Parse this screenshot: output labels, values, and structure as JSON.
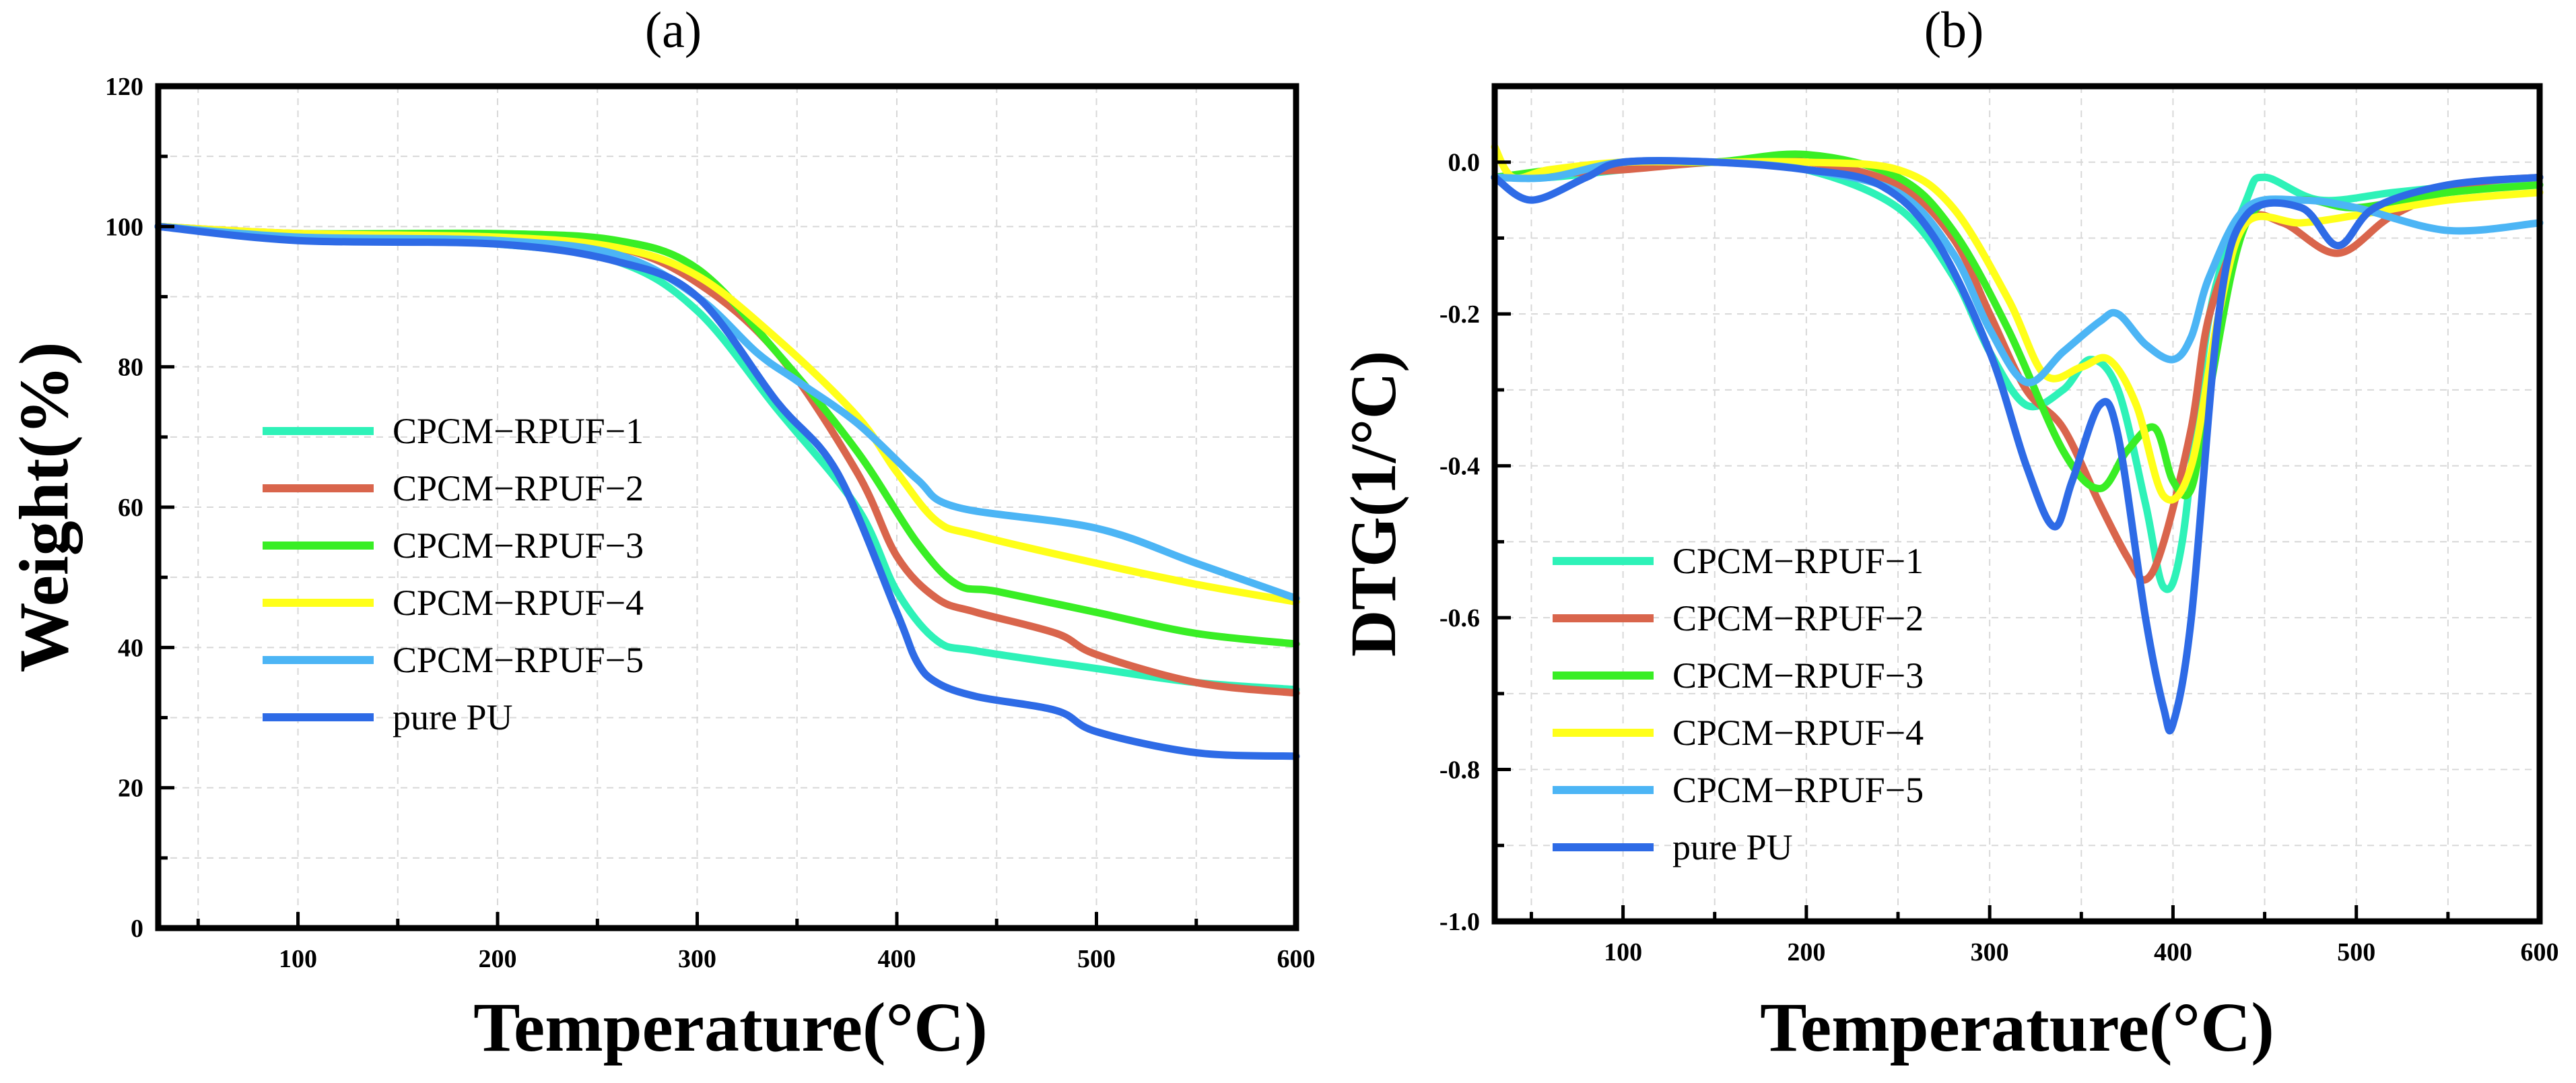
{
  "chart_data": [
    {
      "id": "a",
      "panel_label": "(a)",
      "type": "line",
      "xlabel": "Temperature(°C)",
      "ylabel": "Weight(%)",
      "xlim": [
        30,
        600
      ],
      "ylim": [
        0,
        120
      ],
      "xticks": [
        100,
        200,
        300,
        400,
        500,
        600
      ],
      "yticks": [
        0,
        20,
        40,
        60,
        80,
        100,
        120
      ],
      "legend_position": "center-left",
      "series": [
        {
          "name": "CPCM−RPUF−1",
          "color": "#2EF2B8",
          "x": [
            30,
            100,
            200,
            260,
            300,
            340,
            380,
            400,
            420,
            440,
            500,
            550,
            600
          ],
          "y": [
            100,
            98.5,
            97.5,
            95,
            88,
            74,
            60,
            48,
            41,
            39.5,
            37,
            35,
            34
          ]
        },
        {
          "name": "CPCM−RPUF−2",
          "color": "#D9654C",
          "x": [
            30,
            100,
            200,
            260,
            300,
            340,
            380,
            400,
            420,
            440,
            480,
            500,
            550,
            600
          ],
          "y": [
            100,
            99,
            98.5,
            97,
            92,
            82,
            65,
            53,
            47,
            45,
            42,
            39,
            35,
            33.5
          ]
        },
        {
          "name": "CPCM−RPUF−3",
          "color": "#39EE25",
          "x": [
            30,
            100,
            200,
            260,
            300,
            340,
            380,
            410,
            430,
            450,
            500,
            550,
            600
          ],
          "y": [
            100,
            99,
            99,
            98,
            94,
            82,
            68,
            55,
            49,
            48,
            45,
            42,
            40.5
          ]
        },
        {
          "name": "CPCM−RPUF−4",
          "color": "#FFFF19",
          "x": [
            30,
            100,
            200,
            260,
            300,
            340,
            380,
            400,
            420,
            440,
            500,
            550,
            600
          ],
          "y": [
            100,
            99,
            98.5,
            97,
            93,
            84,
            73,
            65,
            58,
            56,
            52,
            49,
            46.5
          ]
        },
        {
          "name": "CPCM−RPUF−5",
          "color": "#4CB5F5",
          "x": [
            30,
            100,
            200,
            260,
            300,
            330,
            350,
            380,
            410,
            430,
            500,
            550,
            600
          ],
          "y": [
            100,
            98.5,
            98,
            96,
            90,
            82,
            78,
            72,
            64,
            60,
            57,
            52,
            47
          ]
        },
        {
          "name": "pure PU",
          "color": "#2E6BE6",
          "x": [
            30,
            100,
            200,
            260,
            300,
            340,
            370,
            400,
            410,
            420,
            440,
            480,
            500,
            550,
            600
          ],
          "y": [
            100,
            98,
            97.5,
            95,
            90,
            75,
            65,
            45,
            38,
            35,
            33,
            31,
            28,
            25,
            24.5
          ]
        }
      ]
    },
    {
      "id": "b",
      "panel_label": "(b)",
      "type": "line",
      "xlabel": "Temperature(°C)",
      "ylabel": "DTG(1/°C)",
      "xlim": [
        30,
        600
      ],
      "ylim": [
        -1.0,
        0.1
      ],
      "xticks": [
        100,
        200,
        300,
        400,
        500,
        600
      ],
      "yticks": [
        0.0,
        -0.2,
        -0.4,
        -0.6,
        -0.8,
        -1.0
      ],
      "ytick_labels": [
        "0.0",
        "-0.2",
        "-0.4",
        "-0.6",
        "-0.8",
        "-1.0"
      ],
      "legend_position": "bottom-left",
      "series": [
        {
          "name": "CPCM−RPUF−1",
          "color": "#2EF2B8",
          "x": [
            30,
            60,
            100,
            150,
            200,
            250,
            280,
            300,
            320,
            340,
            355,
            370,
            385,
            395,
            405,
            420,
            440,
            450,
            480,
            520,
            560,
            600
          ],
          "y": [
            -0.02,
            -0.02,
            -0.01,
            0,
            -0.01,
            -0.06,
            -0.15,
            -0.25,
            -0.32,
            -0.3,
            -0.26,
            -0.3,
            -0.45,
            -0.56,
            -0.5,
            -0.2,
            -0.05,
            -0.02,
            -0.05,
            -0.04,
            -0.03,
            -0.02
          ]
        },
        {
          "name": "CPCM−RPUF−2",
          "color": "#D9654C",
          "x": [
            30,
            100,
            150,
            200,
            250,
            280,
            300,
            320,
            340,
            360,
            375,
            385,
            395,
            410,
            420,
            440,
            460,
            490,
            520,
            560,
            600
          ],
          "y": [
            -0.02,
            -0.01,
            0,
            0,
            -0.03,
            -0.1,
            -0.2,
            -0.3,
            -0.35,
            -0.45,
            -0.52,
            -0.55,
            -0.5,
            -0.35,
            -0.2,
            -0.08,
            -0.08,
            -0.12,
            -0.07,
            -0.03,
            -0.02
          ]
        },
        {
          "name": "CPCM−RPUF−3",
          "color": "#39EE25",
          "x": [
            30,
            100,
            150,
            200,
            250,
            280,
            310,
            340,
            360,
            375,
            390,
            400,
            410,
            420,
            440,
            470,
            500,
            550,
            600
          ],
          "y": [
            -0.02,
            0,
            0,
            0.01,
            -0.02,
            -0.09,
            -0.22,
            -0.38,
            -0.43,
            -0.38,
            -0.35,
            -0.42,
            -0.43,
            -0.3,
            -0.08,
            -0.05,
            -0.06,
            -0.04,
            -0.03
          ]
        },
        {
          "name": "CPCM−RPUF−4",
          "color": "#FFFF19",
          "x": [
            30,
            40,
            60,
            100,
            150,
            200,
            250,
            280,
            310,
            330,
            350,
            365,
            380,
            395,
            410,
            425,
            440,
            470,
            500,
            550,
            600
          ],
          "y": [
            0.02,
            -0.02,
            -0.01,
            0,
            0,
            0,
            -0.01,
            -0.06,
            -0.18,
            -0.28,
            -0.27,
            -0.26,
            -0.32,
            -0.44,
            -0.4,
            -0.2,
            -0.08,
            -0.08,
            -0.07,
            -0.05,
            -0.04
          ]
        },
        {
          "name": "CPCM−RPUF−5",
          "color": "#4CB5F5",
          "x": [
            30,
            60,
            100,
            150,
            200,
            250,
            280,
            300,
            320,
            340,
            360,
            370,
            385,
            400,
            410,
            420,
            440,
            470,
            500,
            550,
            600
          ],
          "y": [
            -0.02,
            -0.02,
            0,
            0,
            -0.01,
            -0.04,
            -0.12,
            -0.22,
            -0.29,
            -0.25,
            -0.21,
            -0.2,
            -0.24,
            -0.26,
            -0.23,
            -0.15,
            -0.06,
            -0.05,
            -0.06,
            -0.09,
            -0.08
          ]
        },
        {
          "name": "pure PU",
          "color": "#2E6BE6",
          "x": [
            30,
            50,
            80,
            100,
            150,
            200,
            240,
            270,
            300,
            320,
            335,
            345,
            360,
            370,
            385,
            395,
            400,
            410,
            425,
            440,
            470,
            490,
            510,
            550,
            600
          ],
          "y": [
            -0.02,
            -0.05,
            -0.02,
            0,
            0,
            -0.01,
            -0.03,
            -0.1,
            -0.25,
            -0.4,
            -0.48,
            -0.42,
            -0.32,
            -0.36,
            -0.6,
            -0.72,
            -0.74,
            -0.6,
            -0.2,
            -0.07,
            -0.06,
            -0.11,
            -0.06,
            -0.03,
            -0.02
          ]
        }
      ]
    }
  ]
}
